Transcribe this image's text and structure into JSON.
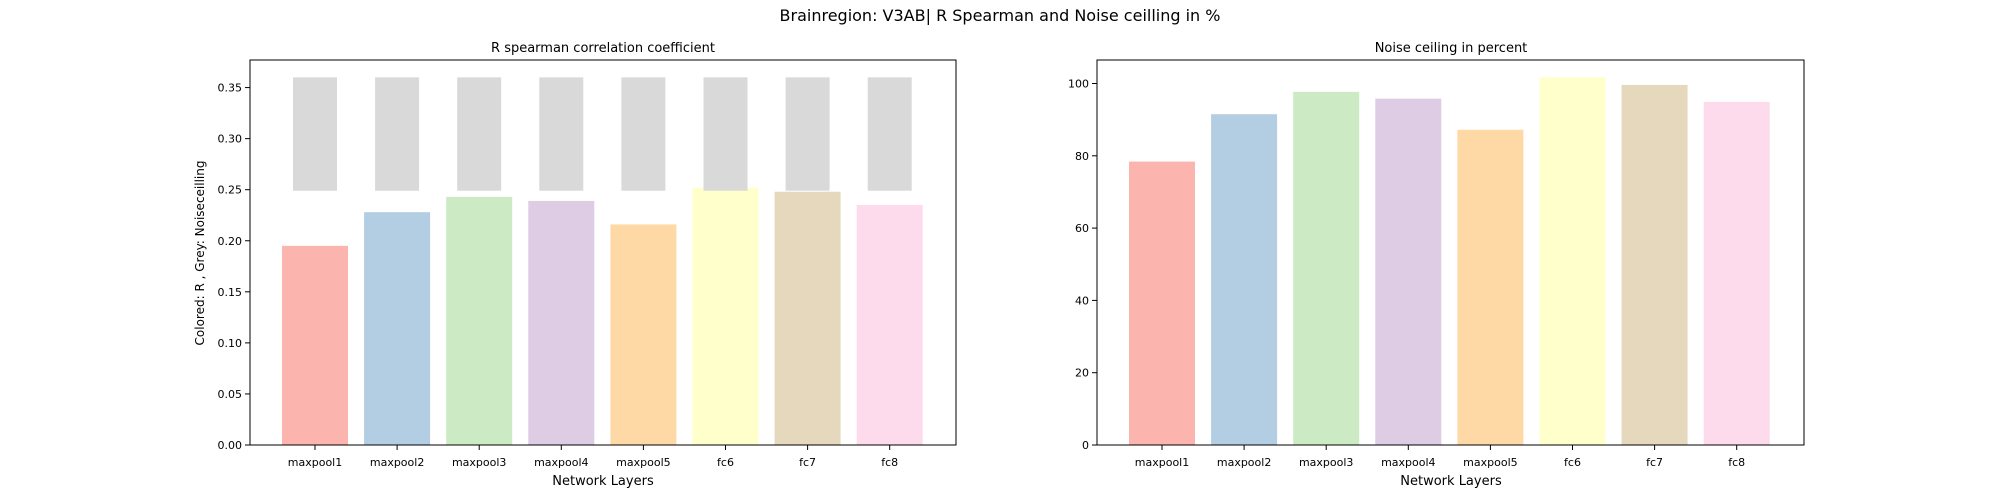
{
  "figure": {
    "suptitle": "Brainregion: V3AB| R Spearman and Noise ceilling in %"
  },
  "chart_data": [
    {
      "type": "bar",
      "title": "R spearman correlation coefficient",
      "xlabel": "Network Layers",
      "ylabel": "Colored: R , Grey: Noiseceilling",
      "categories": [
        "maxpool1",
        "maxpool2",
        "maxpool3",
        "maxpool4",
        "maxpool5",
        "fc6",
        "fc7",
        "fc8"
      ],
      "ylim": [
        0,
        0.377
      ],
      "yticks": [
        "0.00",
        "0.05",
        "0.10",
        "0.15",
        "0.20",
        "0.25",
        "0.30",
        "0.35"
      ],
      "series": [
        {
          "values": [
            0.195,
            0.228,
            0.243,
            0.239,
            0.216,
            0.252,
            0.248,
            0.235
          ],
          "colors": [
            "#fbb4ae",
            "#b3cde3",
            "#ccebc5",
            "#decbe4",
            "#fed9a6",
            "#ffffcc",
            "#e5d8bd",
            "#fddaec"
          ]
        },
        {
          "range": [
            0.249,
            0.36
          ],
          "color": "#d9d9d9"
        }
      ],
      "grid": false
    },
    {
      "type": "bar",
      "title": "Noise ceiling in percent",
      "xlabel": "Network Layers",
      "ylabel": "",
      "categories": [
        "maxpool1",
        "maxpool2",
        "maxpool3",
        "maxpool4",
        "maxpool5",
        "fc6",
        "fc7",
        "fc8"
      ],
      "ylim": [
        0,
        106.5
      ],
      "yticks": [
        "0",
        "20",
        "40",
        "60",
        "80",
        "100"
      ],
      "series": [
        {
          "values": [
            78.4,
            91.5,
            97.7,
            95.8,
            87.2,
            101.7,
            99.6,
            94.9
          ],
          "colors": [
            "#fbb4ae",
            "#b3cde3",
            "#ccebc5",
            "#decbe4",
            "#fed9a6",
            "#ffffcc",
            "#e5d8bd",
            "#fddaec"
          ]
        }
      ],
      "grid": false
    }
  ]
}
